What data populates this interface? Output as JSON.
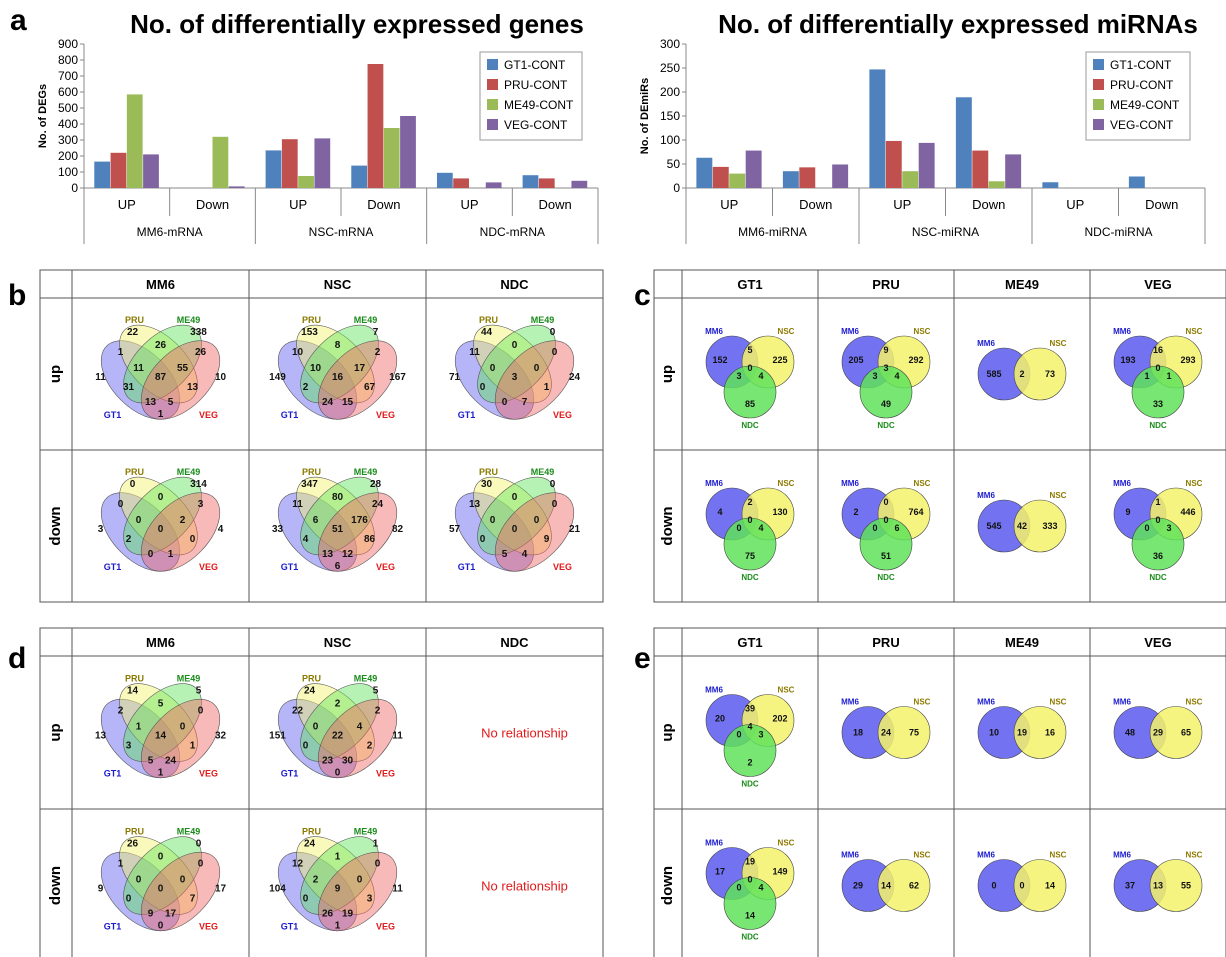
{
  "panel_letters": [
    "a",
    "b",
    "c",
    "d",
    "e"
  ],
  "colors": {
    "GT1": "#4f81bd",
    "PRU": "#c0504d",
    "ME49": "#9bbb59",
    "VEG": "#8064a2",
    "venn_GT1": "#5b5bf0",
    "venn_PRU": "#f5f26a",
    "venn_ME49": "#5fe25a",
    "venn_VEG": "#f06464",
    "lbl_GT1": "#1a1ad0",
    "lbl_PRU": "#8c7a00",
    "lbl_ME49": "#1a8c1a",
    "lbl_VEG": "#e01a1a",
    "lbl_MM6": "#1a1ad0",
    "lbl_NSC": "#8c7a00",
    "lbl_NDC": "#1a8c1a",
    "no_rel": "#e01a1a"
  },
  "chart_data": [
    {
      "type": "bar",
      "title": "No. of differentially expressed genes",
      "ylabel": "No. of DEGs",
      "ylim": [
        0,
        900
      ],
      "yticks": [
        0,
        100,
        200,
        300,
        400,
        500,
        600,
        700,
        800,
        900
      ],
      "categories": [
        "UP",
        "Down",
        "UP",
        "Down",
        "UP",
        "Down"
      ],
      "groups": [
        "MM6-mRNA",
        "NSC-mRNA",
        "NDC-mRNA"
      ],
      "series": [
        {
          "name": "GT1-CONT",
          "values": [
            165,
            0,
            235,
            140,
            95,
            80
          ]
        },
        {
          "name": "PRU-CONT",
          "values": [
            220,
            0,
            305,
            775,
            60,
            60
          ]
        },
        {
          "name": "ME49-CONT",
          "values": [
            585,
            320,
            75,
            375,
            0,
            0
          ]
        },
        {
          "name": "VEG-CONT",
          "values": [
            210,
            10,
            310,
            450,
            35,
            45
          ]
        }
      ],
      "legend": "top-right",
      "grid": false
    },
    {
      "type": "bar",
      "title": "No. of differentially expressed miRNAs",
      "ylabel": "No. of DEmiRs",
      "ylim": [
        0,
        300
      ],
      "yticks": [
        0,
        50,
        100,
        150,
        200,
        250,
        300
      ],
      "categories": [
        "UP",
        "Down",
        "UP",
        "Down",
        "UP",
        "Down"
      ],
      "groups": [
        "MM6-miRNA",
        "NSC-miRNA",
        "NDC-miRNA"
      ],
      "series": [
        {
          "name": "GT1-CONT",
          "values": [
            63,
            35,
            247,
            189,
            12,
            24
          ]
        },
        {
          "name": "PRU-CONT",
          "values": [
            44,
            43,
            98,
            78,
            0,
            0
          ]
        },
        {
          "name": "ME49-CONT",
          "values": [
            30,
            0,
            35,
            14,
            0,
            0
          ]
        },
        {
          "name": "VEG-CONT",
          "values": [
            78,
            49,
            94,
            70,
            0,
            0
          ]
        }
      ],
      "legend": "top-right",
      "grid": false
    }
  ],
  "panel_b": {
    "columns": [
      "MM6",
      "NSC",
      "NDC"
    ],
    "rows": [
      "up",
      "down"
    ],
    "labels": [
      "PRU",
      "ME49",
      "GT1",
      "VEG"
    ],
    "cells": [
      [
        [
          "22",
          "338",
          "11",
          "10",
          "1",
          "26",
          "26",
          "11",
          "55",
          "31",
          "13",
          "87",
          "13",
          "5",
          "1"
        ],
        [
          "153",
          "7",
          "149",
          "167",
          "10",
          "8",
          "2",
          "10",
          "17",
          "2",
          "67",
          "16",
          "24",
          "15",
          ""
        ],
        [
          "44",
          "0",
          "71",
          "24",
          "11",
          "0",
          "0",
          "0",
          "0",
          "0",
          "1",
          "3",
          "0",
          "7",
          ""
        ]
      ],
      [
        [
          "0",
          "314",
          "3",
          "4",
          "0",
          "0",
          "3",
          "0",
          "2",
          "2",
          "0",
          "0",
          "0",
          "1",
          ""
        ],
        [
          "347",
          "28",
          "33",
          "82",
          "11",
          "80",
          "24",
          "6",
          "176",
          "4",
          "86",
          "51",
          "13",
          "12",
          "6"
        ],
        [
          "30",
          "0",
          "57",
          "21",
          "13",
          "0",
          "0",
          "0",
          "0",
          "0",
          "9",
          "0",
          "5",
          "4",
          ""
        ]
      ]
    ]
  },
  "panel_c": {
    "columns": [
      "GT1",
      "PRU",
      "ME49",
      "VEG"
    ],
    "rows": [
      "up",
      "down"
    ],
    "labels": [
      "MM6",
      "NSC",
      "NDC"
    ],
    "cells": [
      [
        {
          "three": true,
          "v": [
            "152",
            "225",
            "85",
            "5",
            "3",
            "4",
            "0"
          ]
        },
        {
          "three": true,
          "v": [
            "205",
            "292",
            "49",
            "9",
            "3",
            "4",
            "3"
          ]
        },
        {
          "three": false,
          "v": [
            "585",
            "73",
            "2"
          ]
        },
        {
          "three": true,
          "v": [
            "193",
            "293",
            "33",
            "16",
            "1",
            "1",
            "0"
          ]
        }
      ],
      [
        {
          "three": true,
          "v": [
            "4",
            "130",
            "75",
            "2",
            "0",
            "4",
            "0"
          ]
        },
        {
          "three": true,
          "v": [
            "2",
            "764",
            "51",
            "0",
            "0",
            "6",
            "0"
          ]
        },
        {
          "three": false,
          "v": [
            "545",
            "333",
            "42"
          ]
        },
        {
          "three": true,
          "v": [
            "9",
            "446",
            "36",
            "1",
            "0",
            "3",
            "0"
          ]
        }
      ]
    ]
  },
  "panel_d": {
    "columns": [
      "MM6",
      "NSC",
      "NDC"
    ],
    "rows": [
      "up",
      "down"
    ],
    "labels": [
      "PRU",
      "ME49",
      "GT1",
      "VEG"
    ],
    "no_relationship": "No relationship",
    "cells": [
      [
        [
          "14",
          "5",
          "13",
          "32",
          "2",
          "5",
          "0",
          "1",
          "0",
          "3",
          "1",
          "14",
          "5",
          "24",
          "1"
        ],
        [
          "24",
          "5",
          "151",
          "11",
          "22",
          "2",
          "2",
          "0",
          "4",
          "0",
          "2",
          "22",
          "23",
          "30",
          "0"
        ]
      ],
      [
        [
          "26",
          "0",
          "9",
          "17",
          "1",
          "0",
          "0",
          "0",
          "0",
          "0",
          "7",
          "0",
          "9",
          "17",
          "0"
        ],
        [
          "24",
          "1",
          "104",
          "11",
          "12",
          "1",
          "0",
          "2",
          "0",
          "0",
          "3",
          "9",
          "26",
          "19",
          "1"
        ]
      ]
    ]
  },
  "panel_e": {
    "columns": [
      "GT1",
      "PRU",
      "ME49",
      "VEG"
    ],
    "rows": [
      "up",
      "down"
    ],
    "labels": [
      "MM6",
      "NSC",
      "NDC"
    ],
    "cells": [
      [
        {
          "three": true,
          "v": [
            "20",
            "202",
            "2",
            "39",
            "0",
            "3",
            "4"
          ]
        },
        {
          "three": false,
          "v": [
            "18",
            "75",
            "24"
          ]
        },
        {
          "three": false,
          "v": [
            "10",
            "16",
            "19"
          ]
        },
        {
          "three": false,
          "v": [
            "48",
            "65",
            "29"
          ]
        }
      ],
      [
        {
          "three": true,
          "v": [
            "17",
            "149",
            "14",
            "19",
            "0",
            "4",
            "0"
          ]
        },
        {
          "three": false,
          "v": [
            "29",
            "62",
            "14"
          ]
        },
        {
          "three": false,
          "v": [
            "0",
            "14",
            "0"
          ]
        },
        {
          "three": false,
          "v": [
            "37",
            "55",
            "13"
          ]
        }
      ]
    ]
  }
}
